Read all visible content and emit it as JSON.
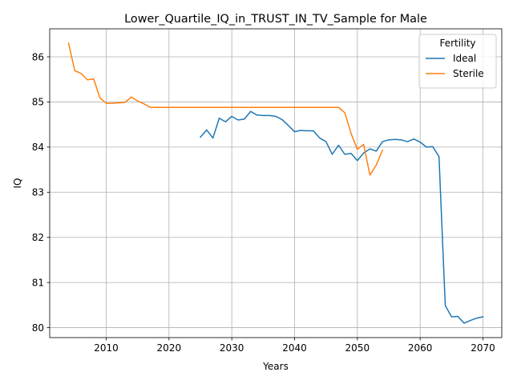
{
  "chart_data": {
    "type": "line",
    "title": "Lower_Quartile_IQ_in_TRUST_IN_TV_Sample for Male",
    "xlabel": "Years",
    "ylabel": "IQ",
    "xlim": [
      2001,
      2073
    ],
    "ylim": [
      79.78,
      86.62
    ],
    "xticks": [
      2010,
      2020,
      2030,
      2040,
      2050,
      2060,
      2070
    ],
    "yticks": [
      80,
      81,
      82,
      83,
      84,
      85,
      86
    ],
    "grid": true,
    "legend": {
      "title": "Fertility",
      "placement": "upper right"
    },
    "series": [
      {
        "name": "Ideal",
        "color": "#1f77b4",
        "x": [
          2025,
          2026,
          2027,
          2028,
          2029,
          2030,
          2031,
          2032,
          2033,
          2034,
          2035,
          2036,
          2037,
          2038,
          2039,
          2040,
          2041,
          2042,
          2043,
          2044,
          2045,
          2046,
          2047,
          2048,
          2049,
          2050,
          2051,
          2052,
          2053,
          2054,
          2055,
          2056,
          2057,
          2058,
          2059,
          2060,
          2061,
          2062,
          2063,
          2064,
          2065,
          2066,
          2067,
          2068,
          2069,
          2070
        ],
        "y": [
          84.22,
          84.38,
          84.2,
          84.64,
          84.56,
          84.68,
          84.6,
          84.62,
          84.79,
          84.71,
          84.7,
          84.7,
          84.68,
          84.61,
          84.48,
          84.34,
          84.37,
          84.36,
          84.36,
          84.2,
          84.12,
          83.84,
          84.04,
          83.84,
          83.86,
          83.7,
          83.87,
          83.96,
          83.91,
          84.12,
          84.16,
          84.17,
          84.16,
          84.12,
          84.18,
          84.11,
          84.0,
          84.01,
          83.79,
          80.49,
          80.24,
          80.25,
          80.1,
          80.16,
          80.21,
          80.24
        ]
      },
      {
        "name": "Sterile",
        "color": "#ff7f0e",
        "x": [
          2004,
          2005,
          2006,
          2007,
          2008,
          2009,
          2010,
          2011,
          2012,
          2013,
          2014,
          2015,
          2016,
          2017,
          2018,
          2019,
          2020,
          2021,
          2022,
          2023,
          2024,
          2025,
          2026,
          2027,
          2028,
          2029,
          2030,
          2031,
          2032,
          2033,
          2034,
          2035,
          2036,
          2037,
          2038,
          2039,
          2040,
          2041,
          2042,
          2043,
          2044,
          2045,
          2046,
          2047,
          2048,
          2049,
          2050,
          2051,
          2052,
          2053,
          2054
        ],
        "y": [
          86.3,
          85.69,
          85.63,
          85.49,
          85.51,
          85.09,
          84.97,
          84.97,
          84.98,
          84.99,
          85.11,
          85.02,
          84.96,
          84.88,
          84.88,
          84.88,
          84.88,
          84.88,
          84.88,
          84.88,
          84.88,
          84.88,
          84.88,
          84.88,
          84.88,
          84.88,
          84.88,
          84.88,
          84.88,
          84.88,
          84.88,
          84.88,
          84.88,
          84.88,
          84.88,
          84.88,
          84.88,
          84.88,
          84.88,
          84.88,
          84.88,
          84.88,
          84.88,
          84.88,
          84.76,
          84.3,
          83.95,
          84.06,
          83.38,
          83.6,
          83.93
        ]
      }
    ]
  }
}
